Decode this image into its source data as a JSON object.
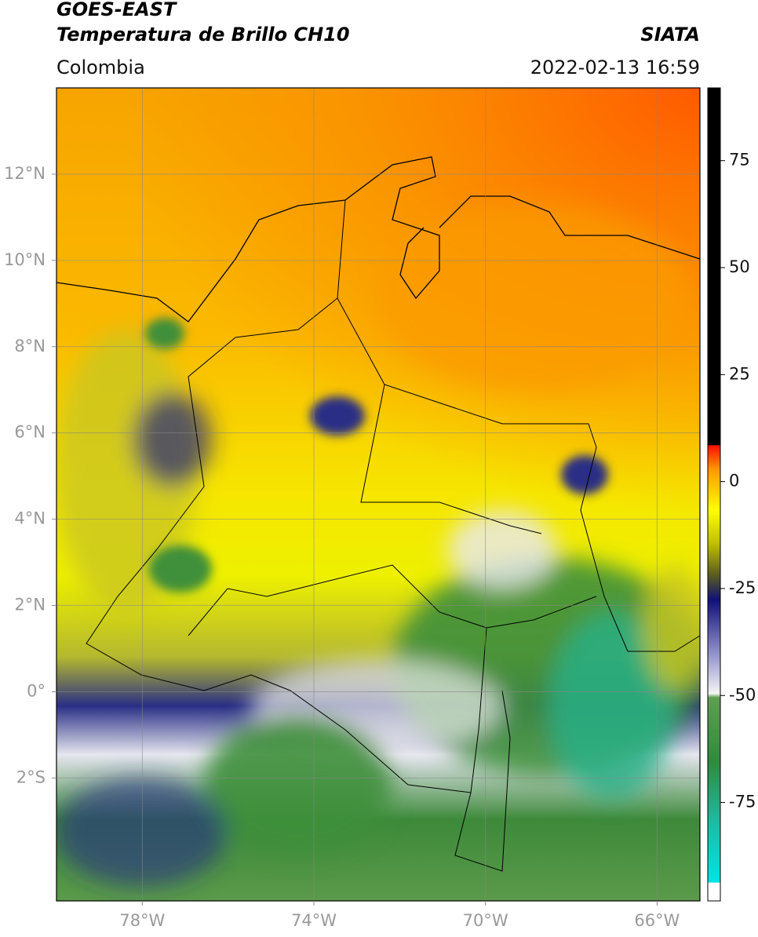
{
  "header": {
    "satellite": "GOES-EAST",
    "product": "Temperatura de Brillo CH10",
    "region": "Colombia",
    "source": "SIATA",
    "datetime": "2022-02-13 16:59"
  },
  "map": {
    "lon_lim": [
      -80,
      -65
    ],
    "lat_lim": [
      -4.85,
      14
    ],
    "lat_ticks": [
      {
        "value": 12,
        "label": "12°N"
      },
      {
        "value": 10,
        "label": "10°N"
      },
      {
        "value": 8,
        "label": "8°N"
      },
      {
        "value": 6,
        "label": "6°N"
      },
      {
        "value": 4,
        "label": "4°N"
      },
      {
        "value": 2,
        "label": "2°N"
      },
      {
        "value": 0,
        "label": "0°"
      },
      {
        "value": -2,
        "label": "2°S"
      }
    ],
    "lon_ticks": [
      {
        "value": -78,
        "label": "78°W"
      },
      {
        "value": -74,
        "label": "74°W"
      },
      {
        "value": -70,
        "label": "70°W"
      },
      {
        "value": -66,
        "label": "66°W"
      }
    ]
  },
  "colorbar": {
    "lim": [
      -98,
      92
    ],
    "ticks": [
      75,
      50,
      25,
      0,
      -25,
      -50,
      -75
    ]
  }
}
